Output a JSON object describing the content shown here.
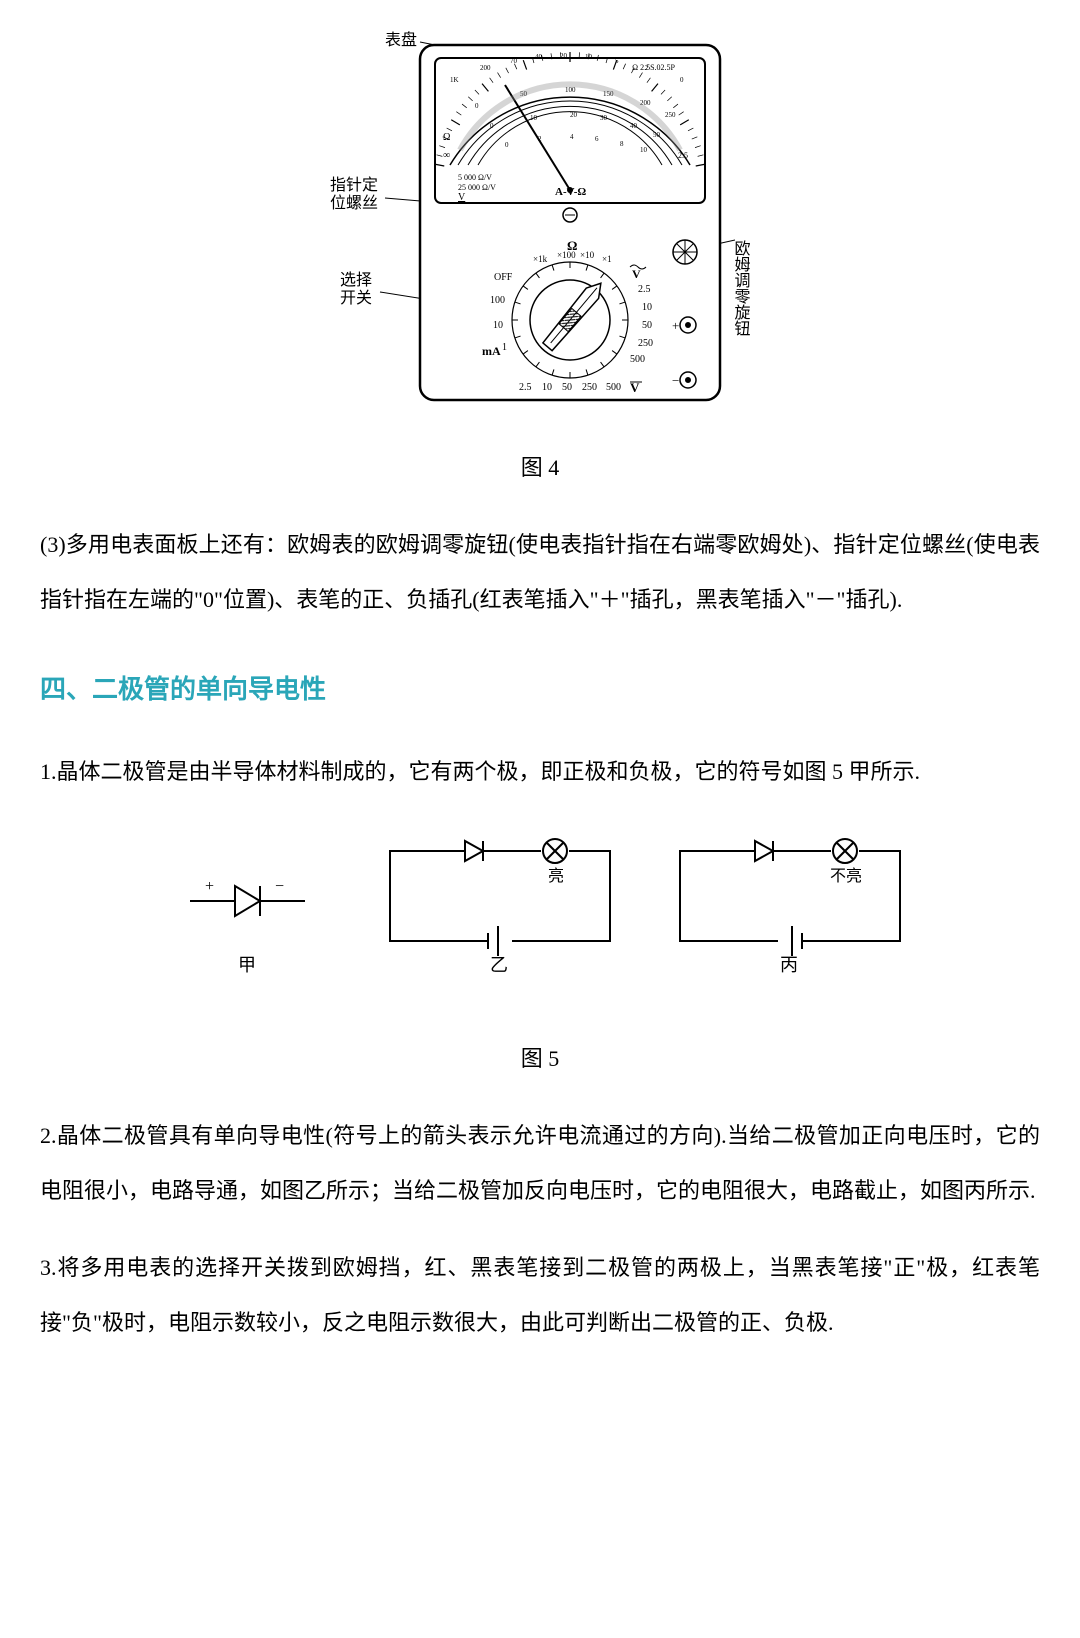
{
  "figure4": {
    "caption": "图 4",
    "labels": {
      "dial": "表盘",
      "pointer_screw_1": "指针定",
      "pointer_screw_2": "位螺丝",
      "selector_1": "选择",
      "selector_2": "开关",
      "ohm_zero": "欧姆调零旋钮"
    },
    "meter": {
      "face_text_top": "Ω 2.5S.02.5P",
      "spec1": "5 000 Ω/V",
      "spec2": "25 000 Ω/V",
      "sublabel": "A-V-Ω",
      "underline": "V",
      "ohm_sym": "Ω",
      "ranges_top": [
        "×1k",
        "×100",
        "×10",
        "×1"
      ],
      "off": "OFF",
      "left_vals": [
        "100",
        "10",
        "1"
      ],
      "ma": "mA",
      "bottom_vals": [
        "2.5",
        "10",
        "50",
        "250",
        "500"
      ],
      "v": "V",
      "right_v_vals": [
        "2.5",
        "10",
        "50",
        "250",
        "500"
      ],
      "v_tilde": "V",
      "plus": "+",
      "minus": "−",
      "scale_ohm": [
        "1K",
        "500",
        "200",
        "100",
        "70",
        "50",
        "40",
        "30",
        "20",
        "15",
        "10",
        "7",
        "5",
        "3",
        "2",
        "1",
        "0"
      ],
      "scale_mid": [
        "0",
        "50",
        "100",
        "150",
        "200",
        "250"
      ],
      "scale_dcv": [
        "0",
        "10",
        "20",
        "30",
        "40",
        "50"
      ],
      "scale_acv": [
        "0",
        "2",
        "4",
        "6",
        "8",
        "10"
      ]
    }
  },
  "para3": "(3)多用电表面板上还有：欧姆表的欧姆调零旋钮(使电表指针指在右端零欧姆处)、指针定位螺丝(使电表指针指在左端的\"0\"位置)、表笔的正、负插孔(红表笔插入\"＋\"插孔，黑表笔插入\"－\"插孔).",
  "section_heading": "四、二极管的单向导电性",
  "para_item1": "1.晶体二极管是由半导体材料制成的，它有两个极，即正极和负极，它的符号如图 5 甲所示.",
  "figure5": {
    "caption": "图 5",
    "labels": {
      "jia": "甲",
      "yi": "乙",
      "bing": "丙",
      "liang": "亮",
      "buliang": "不亮",
      "plus": "+",
      "minus": "−"
    }
  },
  "para_item2": "2.晶体二极管具有单向导电性(符号上的箭头表示允许电流通过的方向).当给二极管加正向电压时，它的电阻很小，电路导通，如图乙所示；当给二极管加反向电压时，它的电阻很大，电路截止，如图丙所示.",
  "para_item3": "3.将多用电表的选择开关拨到欧姆挡，红、黑表笔接到二极管的两极上，当黑表笔接\"正\"极，红表笔接\"负\"极时，电阻示数较小，反之电阻示数很大，由此可判断出二极管的正、负极."
}
